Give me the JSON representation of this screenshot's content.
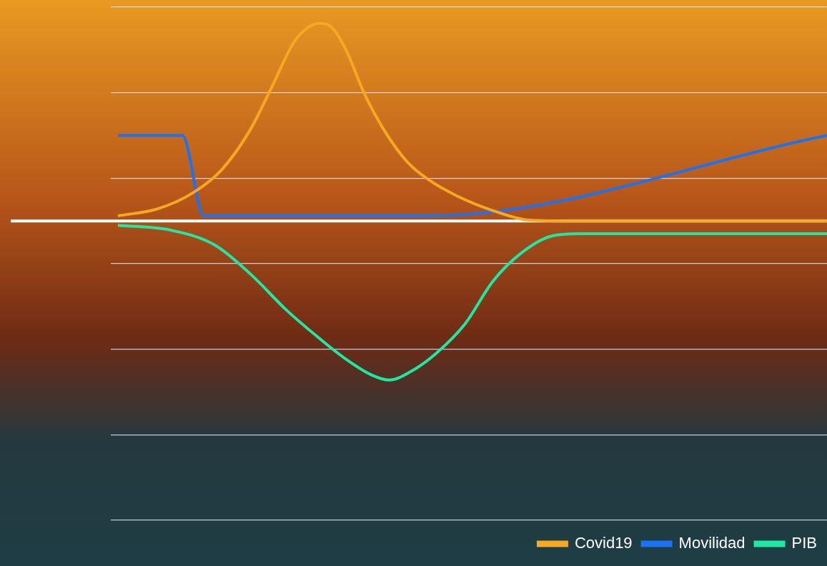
{
  "chart_data": {
    "type": "line",
    "xlim": [
      0,
      100
    ],
    "ylim": [
      0,
      6
    ],
    "yticks": [
      0,
      1,
      2,
      3,
      4,
      5,
      6
    ],
    "grid": true,
    "tick_labels": false,
    "legend": "bottom right",
    "reference_line": 3.5,
    "series": [
      {
        "name": "Covid19",
        "color": "#f7a823",
        "x": [
          1.0,
          6.5,
          11.5,
          15.5,
          19.5,
          22.5,
          25.5,
          27.5,
          29.1,
          30.9,
          32.9,
          35.4,
          38.4,
          41.4,
          44.4,
          48.4,
          53.4,
          58.4,
          64.4,
          100
        ],
        "values": [
          3.56,
          3.64,
          3.83,
          4.1,
          4.57,
          5.07,
          5.58,
          5.76,
          5.81,
          5.76,
          5.49,
          4.99,
          4.53,
          4.19,
          3.98,
          3.79,
          3.62,
          3.51,
          3.5,
          3.5
        ]
      },
      {
        "name": "Movilidad",
        "color": "#1a73f5",
        "x": [
          1.0,
          10.0,
          13.0,
          44.4,
          100
        ],
        "values": [
          4.5,
          4.5,
          3.56,
          3.56,
          4.5
        ]
      },
      {
        "name": "PIB",
        "color": "#1ee8a2",
        "x": [
          1.0,
          8.5,
          14.5,
          19.5,
          24.5,
          28.5,
          32.4,
          36.4,
          38.9,
          41.9,
          45.4,
          49.4,
          53.4,
          57.4,
          61.4,
          65.4,
          100
        ],
        "values": [
          3.45,
          3.39,
          3.22,
          2.88,
          2.46,
          2.17,
          1.91,
          1.7,
          1.64,
          1.74,
          1.95,
          2.29,
          2.8,
          3.13,
          3.32,
          3.35,
          3.35
        ]
      }
    ]
  }
}
